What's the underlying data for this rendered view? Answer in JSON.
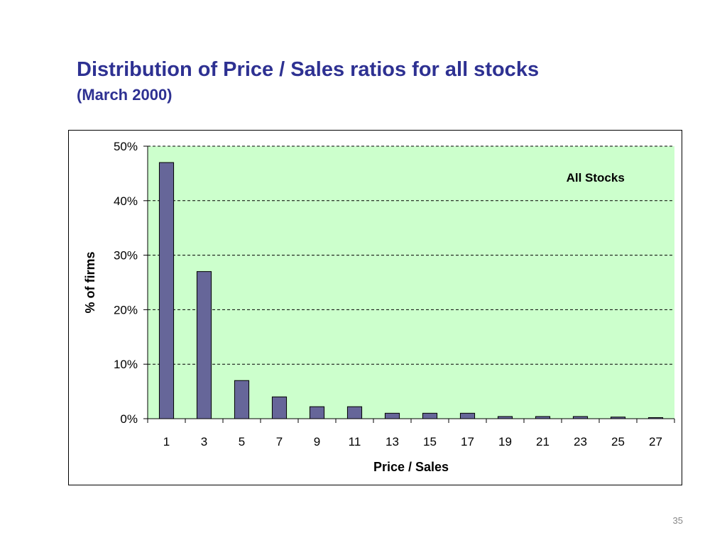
{
  "slide": {
    "title": "Distribution of Price / Sales ratios for all stocks",
    "subtitle": "(March 2000)",
    "page_number": "35"
  },
  "colors": {
    "title": "#2e3192",
    "plot_background": "#ccffcc",
    "bar_fill": "#666699",
    "bar_stroke": "#000000",
    "gridline": "#000000"
  },
  "chart_data": {
    "type": "bar",
    "categories": [
      "1",
      "3",
      "5",
      "7",
      "9",
      "11",
      "13",
      "15",
      "17",
      "19",
      "21",
      "23",
      "25",
      "27"
    ],
    "values": [
      47,
      27,
      7,
      4,
      2.2,
      2.2,
      1,
      1,
      1,
      0.4,
      0.4,
      0.4,
      0.3,
      0.2
    ],
    "value_unit": "%",
    "title": "",
    "xlabel": "Price / Sales",
    "ylabel": "% of firms",
    "ylim": [
      0,
      50
    ],
    "yticks": [
      0,
      10,
      20,
      30,
      40,
      50
    ],
    "ytick_labels": [
      "0%",
      "10%",
      "20%",
      "30%",
      "40%",
      "50%"
    ],
    "grid": "horizontal dashed",
    "legend": "none",
    "annotation": "All Stocks",
    "annotation_placement": "top-right"
  }
}
